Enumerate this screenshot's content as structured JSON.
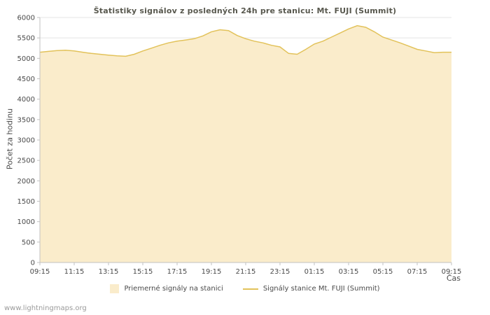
{
  "footer": {
    "watermark": "www.lightningmaps.org"
  },
  "chart_data": {
    "type": "area",
    "title": "Štatistiky signálov z posledných 24h pre stanicu: Mt. FUJI (Summit)",
    "xlabel": "Čas",
    "ylabel": "Počet za hodinu",
    "ylim": [
      0,
      6000
    ],
    "ytick_step": 500,
    "grid": true,
    "legend_position": "bottom",
    "x": [
      "09:15",
      "09:45",
      "10:15",
      "10:45",
      "11:15",
      "11:45",
      "12:15",
      "12:45",
      "13:15",
      "13:45",
      "14:15",
      "14:45",
      "15:15",
      "15:45",
      "16:15",
      "16:45",
      "17:15",
      "17:45",
      "18:15",
      "18:45",
      "19:15",
      "19:45",
      "20:15",
      "20:45",
      "21:15",
      "21:45",
      "22:15",
      "22:45",
      "23:15",
      "23:45",
      "00:15",
      "00:45",
      "01:15",
      "01:45",
      "02:15",
      "02:45",
      "03:15",
      "03:45",
      "04:15",
      "04:45",
      "05:15",
      "05:45",
      "06:15",
      "06:45",
      "07:15",
      "07:45",
      "08:15",
      "08:45",
      "09:15"
    ],
    "series": [
      {
        "name": "Priemerné signály na stanici",
        "values": [
          5150,
          5170,
          5190,
          5200,
          5180,
          5150,
          5120,
          5100,
          5080,
          5060,
          5050,
          5100,
          5180,
          5250,
          5320,
          5380,
          5420,
          5450,
          5480,
          5550,
          5650,
          5700,
          5680,
          5560,
          5480,
          5420,
          5380,
          5320,
          5280,
          5120,
          5100,
          5220,
          5350,
          5420,
          5520,
          5620,
          5720,
          5800,
          5760,
          5650,
          5520,
          5450,
          5380,
          5300,
          5220,
          5180,
          5140,
          5150,
          5150
        ]
      }
    ],
    "x_tick_labels": [
      "09:15",
      "11:15",
      "13:15",
      "15:15",
      "17:15",
      "19:15",
      "21:15",
      "23:15",
      "01:15",
      "03:15",
      "05:15",
      "07:15",
      "09:15"
    ],
    "legend": [
      "Priemerné signály na stanici",
      "Signály stanice Mt. FUJI (Summit)"
    ],
    "colors": {
      "area_fill": "#faeccb",
      "line": "#e2c25a",
      "grid": "#e4e4e4",
      "axis": "#c2c2c2",
      "text": "#4a4a4a"
    }
  }
}
